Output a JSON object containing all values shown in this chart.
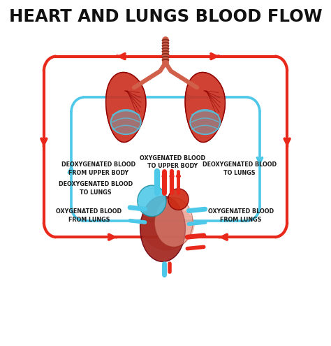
{
  "title": "HEART AND LUNGS BLOOD FLOW",
  "title_fontsize": 17.5,
  "background_color": "#ffffff",
  "red_color": "#e8281a",
  "blue_color": "#4dc8e8",
  "text_color": "#1a1a1a",
  "label_fontsize": 5.8,
  "lw_outer": 3.0,
  "lw_inner": 2.6,
  "labels": {
    "oxygenated_upper": "OXYGENATED BLOOD\nTO UPPER BODY",
    "deoxygenated_upper": "DEOXYGENATED BLOOD\nFROM UPPER BODY",
    "deoxygenated_to_lungs_left": "DEOXYGENATED BLOOD\nTO LUNGS",
    "deoxygenated_to_lungs_right": "DEOXYGENATED BLOOD\nTO LUNGS",
    "oxygenated_from_lungs_left": "OXYGENATED BLOOD\nFROM LUNGS",
    "oxygenated_from_lungs_right": "OXYGENATED BLOOD\nFROM LUNGS"
  }
}
